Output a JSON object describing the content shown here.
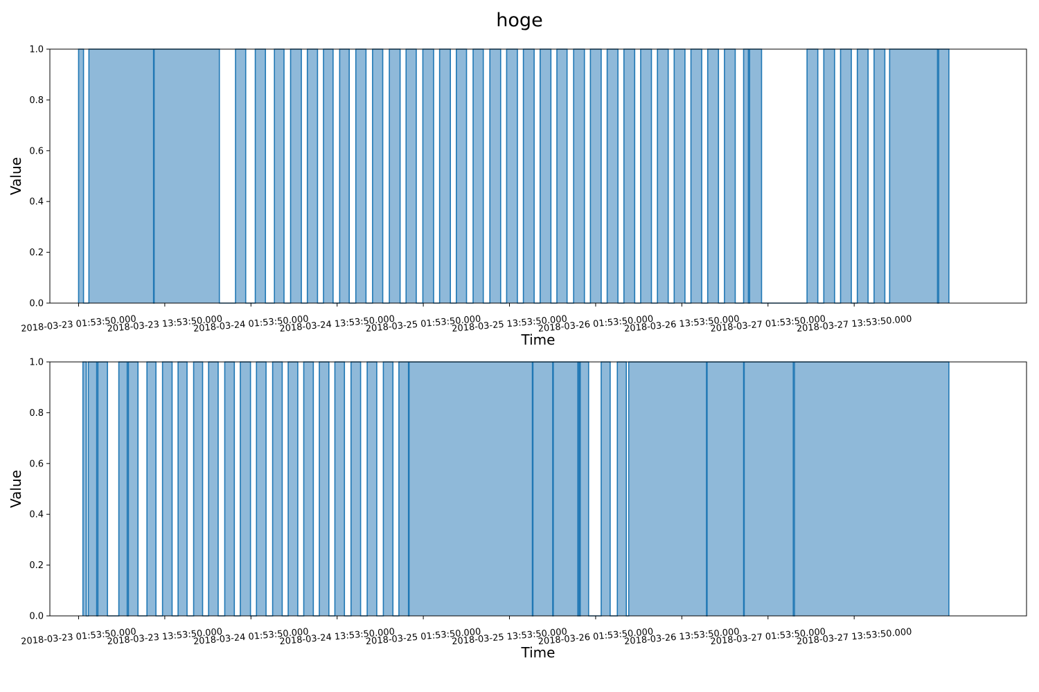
{
  "figure": {
    "title": "hoge"
  },
  "chart_data": [
    {
      "type": "area",
      "xlabel": "Time",
      "ylabel": "Value",
      "xrange": [
        "2018-03-22 21:53:50",
        "2018-03-28 13:53:50"
      ],
      "ylim": [
        0,
        1
      ],
      "yticks": [
        "0.0",
        "0.2",
        "0.4",
        "0.6",
        "0.8",
        "1.0"
      ],
      "xticks": [
        {
          "x": "2018-03-23 01:53:50",
          "label": "2018-03-23 01:53:50.000"
        },
        {
          "x": "2018-03-23 13:53:50",
          "label": "2018-03-23 13:53:50.000"
        },
        {
          "x": "2018-03-24 01:53:50",
          "label": "2018-03-24 01:53:50.000"
        },
        {
          "x": "2018-03-24 13:53:50",
          "label": "2018-03-24 13:53:50.000"
        },
        {
          "x": "2018-03-25 01:53:50",
          "label": "2018-03-25 01:53:50.000"
        },
        {
          "x": "2018-03-25 13:53:50",
          "label": "2018-03-25 13:53:50.000"
        },
        {
          "x": "2018-03-26 01:53:50",
          "label": "2018-03-26 01:53:50.000"
        },
        {
          "x": "2018-03-26 13:53:50",
          "label": "2018-03-26 13:53:50.000"
        },
        {
          "x": "2018-03-27 01:53:50",
          "label": "2018-03-27 01:53:50.000"
        },
        {
          "x": "2018-03-27 13:53:50",
          "label": "2018-03-27 13:53:50.000"
        }
      ],
      "color": "#1f77b4",
      "fill_color": "#8fb9d9",
      "series": [
        {
          "on_intervals": [
            [
              "2018-03-23 01:53:50",
              "2018-03-23 02:35:00"
            ],
            [
              "2018-03-23 03:20:00",
              "2018-03-23 12:20:00"
            ],
            [
              "2018-03-23 12:25:00",
              "2018-03-23 21:30:00"
            ],
            [
              "2018-03-23 23:45:00",
              "2018-03-24 01:10:00"
            ],
            [
              "2018-03-24 02:30:00",
              "2018-03-24 03:55:00"
            ],
            [
              "2018-03-24 05:10:00",
              "2018-03-24 06:30:00"
            ],
            [
              "2018-03-24 07:25:00",
              "2018-03-24 08:55:00"
            ],
            [
              "2018-03-24 09:45:00",
              "2018-03-24 11:10:00"
            ],
            [
              "2018-03-24 12:00:00",
              "2018-03-24 13:20:00"
            ],
            [
              "2018-03-24 14:15:00",
              "2018-03-24 15:35:00"
            ],
            [
              "2018-03-24 16:30:00",
              "2018-03-24 17:55:00"
            ],
            [
              "2018-03-24 18:50:00",
              "2018-03-24 20:15:00"
            ],
            [
              "2018-03-24 21:10:00",
              "2018-03-24 22:40:00"
            ],
            [
              "2018-03-24 23:30:00",
              "2018-03-25 00:55:00"
            ],
            [
              "2018-03-25 01:50:00",
              "2018-03-25 03:20:00"
            ],
            [
              "2018-03-25 04:10:00",
              "2018-03-25 05:40:00"
            ],
            [
              "2018-03-25 06:30:00",
              "2018-03-25 07:55:00"
            ],
            [
              "2018-03-25 08:50:00",
              "2018-03-25 10:15:00"
            ],
            [
              "2018-03-25 11:10:00",
              "2018-03-25 12:40:00"
            ],
            [
              "2018-03-25 13:30:00",
              "2018-03-25 15:00:00"
            ],
            [
              "2018-03-25 15:50:00",
              "2018-03-25 17:20:00"
            ],
            [
              "2018-03-25 18:10:00",
              "2018-03-25 19:40:00"
            ],
            [
              "2018-03-25 20:30:00",
              "2018-03-25 21:55:00"
            ],
            [
              "2018-03-25 22:50:00",
              "2018-03-26 00:20:00"
            ],
            [
              "2018-03-26 01:10:00",
              "2018-03-26 02:40:00"
            ],
            [
              "2018-03-26 03:30:00",
              "2018-03-26 05:00:00"
            ],
            [
              "2018-03-26 05:50:00",
              "2018-03-26 07:20:00"
            ],
            [
              "2018-03-26 08:10:00",
              "2018-03-26 09:40:00"
            ],
            [
              "2018-03-26 10:30:00",
              "2018-03-26 12:00:00"
            ],
            [
              "2018-03-26 12:50:00",
              "2018-03-26 14:20:00"
            ],
            [
              "2018-03-26 15:10:00",
              "2018-03-26 16:40:00"
            ],
            [
              "2018-03-26 17:30:00",
              "2018-03-26 19:00:00"
            ],
            [
              "2018-03-26 19:50:00",
              "2018-03-26 21:20:00"
            ],
            [
              "2018-03-26 22:30:00",
              "2018-03-26 23:10:00"
            ],
            [
              "2018-03-26 23:20:00",
              "2018-03-27 01:00:00"
            ],
            [
              "2018-03-27 07:20:00",
              "2018-03-27 08:50:00"
            ],
            [
              "2018-03-27 09:40:00",
              "2018-03-27 11:10:00"
            ],
            [
              "2018-03-27 12:00:00",
              "2018-03-27 13:30:00"
            ],
            [
              "2018-03-27 14:20:00",
              "2018-03-27 15:50:00"
            ],
            [
              "2018-03-27 16:40:00",
              "2018-03-27 18:10:00"
            ],
            [
              "2018-03-27 18:50:00",
              "2018-03-28 01:30:00"
            ],
            [
              "2018-03-28 01:40:00",
              "2018-03-28 03:05:00"
            ]
          ]
        }
      ]
    },
    {
      "type": "area",
      "xlabel": "Time",
      "ylabel": "Value",
      "xrange": [
        "2018-03-22 21:53:50",
        "2018-03-28 13:53:50"
      ],
      "ylim": [
        0,
        1
      ],
      "yticks": [
        "0.0",
        "0.2",
        "0.4",
        "0.6",
        "0.8",
        "1.0"
      ],
      "xticks": [
        {
          "x": "2018-03-23 01:53:50",
          "label": "2018-03-23 01:53:50.000"
        },
        {
          "x": "2018-03-23 13:53:50",
          "label": "2018-03-23 13:53:50.000"
        },
        {
          "x": "2018-03-24 01:53:50",
          "label": "2018-03-24 01:53:50.000"
        },
        {
          "x": "2018-03-24 13:53:50",
          "label": "2018-03-24 13:53:50.000"
        },
        {
          "x": "2018-03-25 01:53:50",
          "label": "2018-03-25 01:53:50.000"
        },
        {
          "x": "2018-03-25 13:53:50",
          "label": "2018-03-25 13:53:50.000"
        },
        {
          "x": "2018-03-26 01:53:50",
          "label": "2018-03-26 01:53:50.000"
        },
        {
          "x": "2018-03-26 13:53:50",
          "label": "2018-03-26 13:53:50.000"
        },
        {
          "x": "2018-03-27 01:53:50",
          "label": "2018-03-27 01:53:50.000"
        },
        {
          "x": "2018-03-27 13:53:50",
          "label": "2018-03-27 13:53:50.000"
        }
      ],
      "color": "#1f77b4",
      "fill_color": "#8fb9d9",
      "series": [
        {
          "on_intervals": [
            [
              "2018-03-23 02:30:00",
              "2018-03-23 02:58:00"
            ],
            [
              "2018-03-23 03:15:00",
              "2018-03-23 04:25:00"
            ],
            [
              "2018-03-23 04:35:00",
              "2018-03-23 05:55:00"
            ],
            [
              "2018-03-23 07:30:00",
              "2018-03-23 08:40:00"
            ],
            [
              "2018-03-23 08:50:00",
              "2018-03-23 10:10:00"
            ],
            [
              "2018-03-23 11:25:00",
              "2018-03-23 12:40:00"
            ],
            [
              "2018-03-23 13:35:00",
              "2018-03-23 14:55:00"
            ],
            [
              "2018-03-23 15:45:00",
              "2018-03-23 17:00:00"
            ],
            [
              "2018-03-23 17:55:00",
              "2018-03-23 19:10:00"
            ],
            [
              "2018-03-23 20:00:00",
              "2018-03-23 21:20:00"
            ],
            [
              "2018-03-23 22:15:00",
              "2018-03-23 23:35:00"
            ],
            [
              "2018-03-24 00:25:00",
              "2018-03-24 01:50:00"
            ],
            [
              "2018-03-24 02:40:00",
              "2018-03-24 04:00:00"
            ],
            [
              "2018-03-24 04:55:00",
              "2018-03-24 06:15:00"
            ],
            [
              "2018-03-24 07:05:00",
              "2018-03-24 08:25:00"
            ],
            [
              "2018-03-24 09:15:00",
              "2018-03-24 10:35:00"
            ],
            [
              "2018-03-24 11:25:00",
              "2018-03-24 12:45:00"
            ],
            [
              "2018-03-24 13:35:00",
              "2018-03-24 14:55:00"
            ],
            [
              "2018-03-24 15:50:00",
              "2018-03-24 17:10:00"
            ],
            [
              "2018-03-24 18:05:00",
              "2018-03-24 19:25:00"
            ],
            [
              "2018-03-24 20:20:00",
              "2018-03-24 21:40:00"
            ],
            [
              "2018-03-24 22:30:00",
              "2018-03-24 23:50:00"
            ],
            [
              "2018-03-24 23:55:00",
              "2018-03-25 17:05:00"
            ],
            [
              "2018-03-25 17:10:00",
              "2018-03-25 19:55:00"
            ],
            [
              "2018-03-25 20:00:00",
              "2018-03-25 23:25:00"
            ],
            [
              "2018-03-25 23:30:00",
              "2018-03-25 23:40:00"
            ],
            [
              "2018-03-25 23:45:00",
              "2018-03-26 00:55:00"
            ],
            [
              "2018-03-26 02:40:00",
              "2018-03-26 03:55:00"
            ],
            [
              "2018-03-26 04:55:00",
              "2018-03-26 06:10:00"
            ],
            [
              "2018-03-26 06:30:00",
              "2018-03-26 17:20:00"
            ],
            [
              "2018-03-26 17:25:00",
              "2018-03-26 22:30:00"
            ],
            [
              "2018-03-26 22:35:00",
              "2018-03-27 05:25:00"
            ],
            [
              "2018-03-27 05:35:00",
              "2018-03-28 03:05:00"
            ]
          ]
        }
      ]
    }
  ]
}
